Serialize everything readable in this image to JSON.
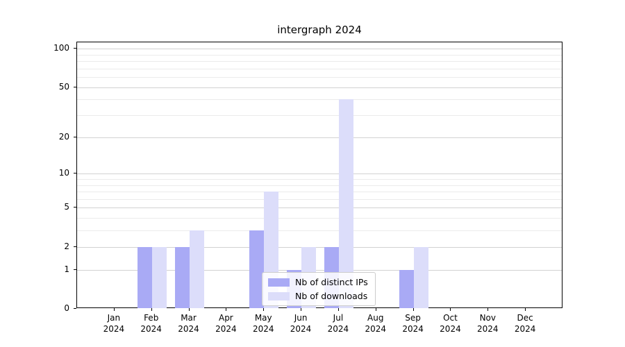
{
  "chart_data": {
    "type": "bar",
    "title": "intergraph 2024",
    "categories": [
      "Jan",
      "Feb",
      "Mar",
      "Apr",
      "May",
      "Jun",
      "Jul",
      "Aug",
      "Sep",
      "Oct",
      "Nov",
      "Dec"
    ],
    "year": "2024",
    "series": [
      {
        "name": "Nb of distinct IPs",
        "color": "#a9aaf5",
        "values": [
          0,
          2,
          2,
          0,
          3,
          1,
          2,
          0,
          1,
          0,
          0,
          0
        ]
      },
      {
        "name": "Nb of downloads",
        "color": "#dcddfa",
        "values": [
          0,
          2,
          3,
          0,
          7,
          2,
          40,
          0,
          2,
          0,
          0,
          0
        ]
      }
    ],
    "y_axis": {
      "scale": "log10(1+x)",
      "major_ticks": [
        0,
        1,
        2,
        5,
        10,
        20,
        50,
        100
      ],
      "minor_ticks": [
        3,
        4,
        6,
        7,
        8,
        9,
        30,
        40,
        60,
        70,
        80,
        90
      ],
      "max": 112
    },
    "xlabel": "",
    "ylabel": "",
    "grid": true,
    "legend_position": "lower center"
  }
}
